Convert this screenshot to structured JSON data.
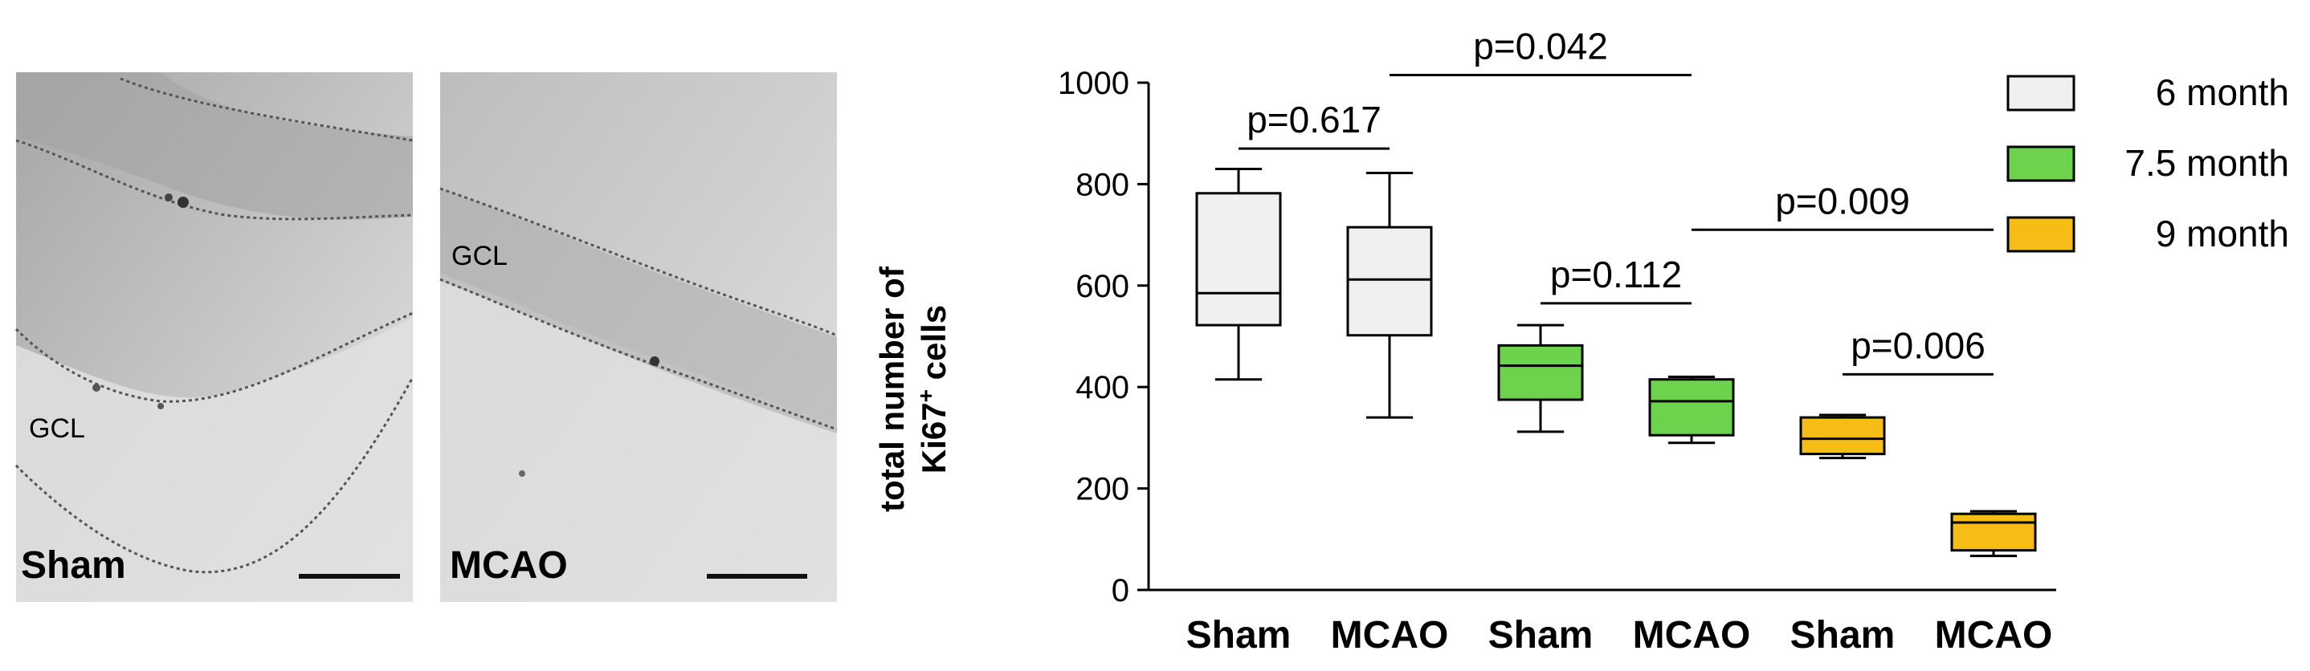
{
  "panels": [
    {
      "label": "Sham",
      "region_label": "GCL"
    },
    {
      "label": "MCAO",
      "region_label": "GCL"
    }
  ],
  "colors": {
    "six_month": "#f0f0f0",
    "seven_half_month": "#6dd34c",
    "nine_month": "#f6bd16",
    "line": "#000000",
    "micro_light": "#e2e2e2",
    "micro_mid": "#b8b8b8",
    "micro_dark": "#9a9a9a"
  },
  "chart_data": {
    "type": "box",
    "title": "",
    "xlabel": "",
    "ylabel_line1": "total number of",
    "ylabel_line2": "Ki67",
    "ylabel_sup": "+",
    "ylabel_tail": " cells",
    "ylim": [
      0,
      1000
    ],
    "yticks": [
      0,
      200,
      400,
      600,
      800,
      1000
    ],
    "categories": [
      "Sham",
      "MCAO",
      "Sham",
      "MCAO",
      "Sham",
      "MCAO"
    ],
    "boxes": [
      {
        "category": "Sham",
        "group": "6 month",
        "color_key": "six_month",
        "min": 415,
        "q1": 522,
        "median": 585,
        "q3": 782,
        "max": 830
      },
      {
        "category": "MCAO",
        "group": "6 month",
        "color_key": "six_month",
        "min": 340,
        "q1": 502,
        "median": 612,
        "q3": 715,
        "max": 822
      },
      {
        "category": "Sham",
        "group": "7.5 month",
        "color_key": "seven_half_month",
        "min": 312,
        "q1": 375,
        "median": 442,
        "q3": 482,
        "max": 522
      },
      {
        "category": "MCAO",
        "group": "7.5 month",
        "color_key": "seven_half_month",
        "min": 290,
        "q1": 305,
        "median": 372,
        "q3": 415,
        "max": 420
      },
      {
        "category": "Sham",
        "group": "9 month",
        "color_key": "nine_month",
        "min": 260,
        "q1": 268,
        "median": 298,
        "q3": 340,
        "max": 345
      },
      {
        "category": "MCAO",
        "group": "9 month",
        "color_key": "nine_month",
        "min": 67,
        "q1": 78,
        "median": 133,
        "q3": 150,
        "max": 155
      }
    ],
    "annotations": [
      {
        "text": "p=0.617",
        "from_box": 0,
        "to_box": 1,
        "y": 870
      },
      {
        "text": "p=0.042",
        "from_box": 1,
        "to_box": 3,
        "y": 1015
      },
      {
        "text": "p=0.112",
        "from_box": 2,
        "to_box": 3,
        "y": 565
      },
      {
        "text": "p=0.009",
        "from_box": 3,
        "to_box": 5,
        "y": 710
      },
      {
        "text": "p=0.006",
        "from_box": 4,
        "to_box": 5,
        "y": 425
      }
    ],
    "legend": {
      "position": "top-right",
      "entries": [
        {
          "label": "6 month",
          "color_key": "six_month"
        },
        {
          "label": "7.5 month",
          "color_key": "seven_half_month"
        },
        {
          "label": "9 month",
          "color_key": "nine_month"
        }
      ]
    }
  }
}
